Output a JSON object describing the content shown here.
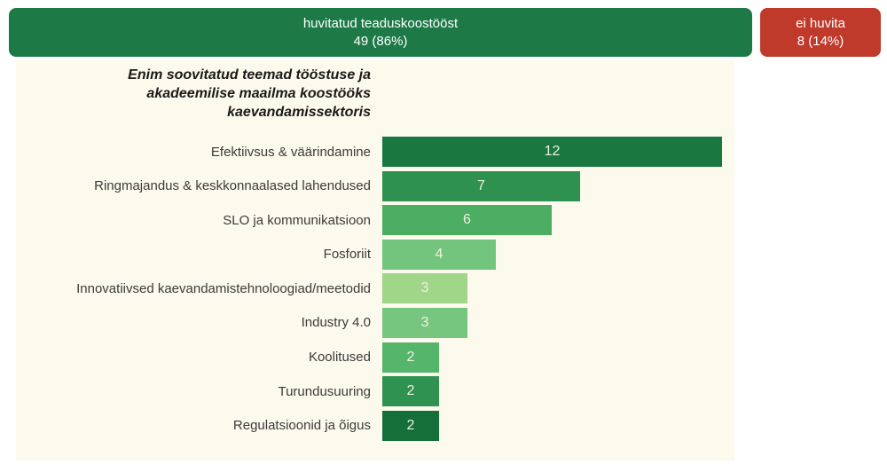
{
  "page": {
    "background": "#ffffff",
    "panel_background": "#fbfaec"
  },
  "header": {
    "interested": {
      "label": "huvitatud teaduskoostööst",
      "value": "49 (86%)",
      "count": 49,
      "percent": "86%",
      "color": "#1d7a47"
    },
    "not_interested": {
      "label": "ei huvita",
      "value": "8 (14%)",
      "count": 8,
      "percent": "14%",
      "color": "#c03a2b"
    }
  },
  "chart_data": {
    "type": "bar",
    "orientation": "horizontal",
    "title": "Enim soovitatud teemad tööstuse ja akadeemilise maailma koostööks kaevandamissektoris",
    "title_lines": [
      "Enim soovitatud teemad tööstuse ja",
      "akadeemilise maailma koostööks",
      "kaevandamissektoris"
    ],
    "categories": [
      "Efektiivsus & väärindamine",
      "Ringmajandus & keskkonnaalased lahendused",
      "SLO ja kommunikatsioon",
      "Fosforiit",
      "Innovatiivsed kaevandamistehnoloogiad/meetodid",
      "Industry 4.0",
      "Koolitused",
      "Turundusuuring",
      "Regulatsioonid ja õigus"
    ],
    "values": [
      12,
      7,
      6,
      4,
      3,
      3,
      2,
      2,
      2
    ],
    "bar_colors": [
      "#187840",
      "#2e9150",
      "#4bae62",
      "#73c47c",
      "#9fd688",
      "#77c67f",
      "#55b66b",
      "#2f9251",
      "#156f38"
    ],
    "value_label_color": "#f1f0e0",
    "xlim": [
      0,
      12.8
    ],
    "grid": false,
    "legend": false,
    "value_labels_position": "center"
  }
}
